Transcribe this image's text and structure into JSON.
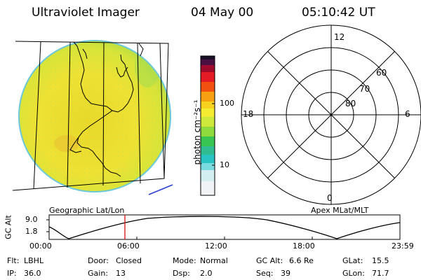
{
  "header": {
    "instrument": "Ultraviolet Imager",
    "date": "04 May 00",
    "time": "05:10:42 UT"
  },
  "colorbar": {
    "unit_label": "photon cm⁻²s⁻¹",
    "tick_labels": [
      "100",
      "10"
    ]
  },
  "polar_plot": {
    "mlt_labels": [
      "12",
      "18",
      "6",
      "0"
    ],
    "mlat_labels": [
      "60",
      "70",
      "80"
    ]
  },
  "map_labels": {
    "left": "Geographic Lat/Lon",
    "right": "Apex MLat/MLT"
  },
  "altitude_plot": {
    "ylabel": "GC Alt",
    "y_ticks": [
      "9.0",
      "1.8"
    ],
    "x_ticks": [
      "00:00",
      "06:00",
      "12:00",
      "18:00",
      "23:59"
    ],
    "current_time_fraction": 0.216
  },
  "info": {
    "row1": [
      {
        "label": "Flt:",
        "value": "LBHL"
      },
      {
        "label": "Door:",
        "value": "Closed"
      },
      {
        "label": "Mode:",
        "value": "Normal"
      },
      {
        "label": "GC Alt:",
        "value": "6.6 Re"
      },
      {
        "label": "GLat:",
        "value": "15.5"
      }
    ],
    "row2": [
      {
        "label": "IP:",
        "value": "36.0"
      },
      {
        "label": "Gain:",
        "value": "13"
      },
      {
        "label": "Dsp:",
        "value": "2.0"
      },
      {
        "label": "Seq:",
        "value": "39"
      },
      {
        "label": "GLon:",
        "value": "71.7"
      }
    ]
  }
}
